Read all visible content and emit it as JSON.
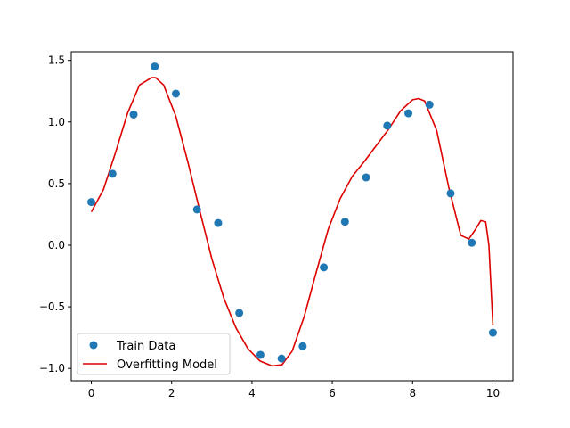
{
  "chart_data": {
    "type": "scatter",
    "title": "",
    "xlabel": "",
    "ylabel": "",
    "xlim": [
      -0.5,
      10.5
    ],
    "ylim": [
      -1.1,
      1.57
    ],
    "grid": false,
    "legend_position": "lower-left",
    "x_ticks": [
      0,
      2,
      4,
      6,
      8,
      10
    ],
    "x_tick_labels": [
      "0",
      "2",
      "4",
      "6",
      "8",
      "10"
    ],
    "y_ticks": [
      -1.0,
      -0.5,
      0.0,
      0.5,
      1.0,
      1.5
    ],
    "y_tick_labels": [
      "−1.0",
      "−0.5",
      "0.0",
      "0.5",
      "1.0",
      "1.5"
    ],
    "series": [
      {
        "name": "Train Data",
        "kind": "scatter",
        "color": "#1f77b4",
        "x": [
          0.0,
          0.526,
          1.053,
          1.579,
          2.105,
          2.632,
          3.158,
          3.684,
          4.211,
          4.737,
          5.263,
          5.789,
          6.316,
          6.842,
          7.368,
          7.895,
          8.421,
          8.947,
          9.474,
          10.0
        ],
        "y": [
          0.35,
          0.58,
          1.06,
          1.45,
          1.23,
          0.29,
          0.18,
          -0.55,
          -0.89,
          -0.92,
          -0.82,
          -0.18,
          0.19,
          0.55,
          0.97,
          1.07,
          1.14,
          0.42,
          0.02,
          -0.71
        ]
      },
      {
        "name": "Overfitting Model",
        "kind": "line",
        "color": "#dd0000",
        "x": [
          0.0,
          0.3,
          0.6,
          0.9,
          1.2,
          1.5,
          1.6,
          1.8,
          2.1,
          2.4,
          2.7,
          3.0,
          3.3,
          3.6,
          3.9,
          4.2,
          4.5,
          4.75,
          5.0,
          5.3,
          5.6,
          5.9,
          6.2,
          6.5,
          6.8,
          7.1,
          7.4,
          7.7,
          8.0,
          8.15,
          8.3,
          8.6,
          8.9,
          9.2,
          9.4,
          9.55,
          9.7,
          9.82,
          9.9,
          10.0
        ],
        "y": [
          0.27,
          0.45,
          0.75,
          1.07,
          1.3,
          1.36,
          1.36,
          1.3,
          1.05,
          0.68,
          0.28,
          -0.11,
          -0.43,
          -0.67,
          -0.84,
          -0.94,
          -0.98,
          -0.97,
          -0.86,
          -0.58,
          -0.22,
          0.13,
          0.38,
          0.56,
          0.68,
          0.81,
          0.94,
          1.09,
          1.18,
          1.19,
          1.17,
          0.93,
          0.47,
          0.08,
          0.05,
          0.12,
          0.2,
          0.19,
          0.0,
          -0.65
        ]
      }
    ]
  }
}
